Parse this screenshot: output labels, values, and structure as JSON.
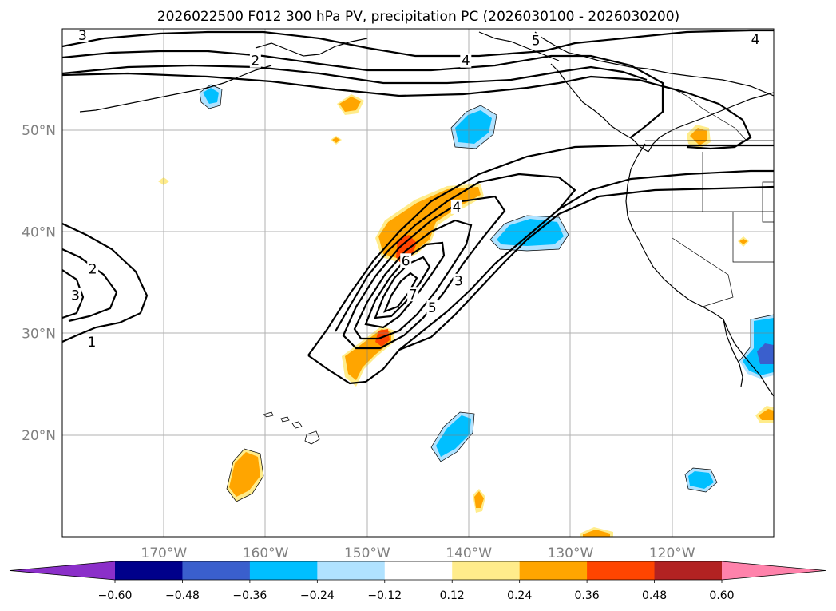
{
  "chart_data": {
    "type": "map",
    "title": "2026022500 F012 300 hPa PV, precipitation PC (2026030100 - 2026030200)",
    "lon_range": [
      -180,
      -110
    ],
    "lat_range": [
      10,
      60
    ],
    "lon_ticks": [
      {
        "lon": -170,
        "label": "170°W"
      },
      {
        "lon": -160,
        "label": "160°W"
      },
      {
        "lon": -150,
        "label": "150°W"
      },
      {
        "lon": -140,
        "label": "140°W"
      },
      {
        "lon": -130,
        "label": "130°W"
      },
      {
        "lon": -120,
        "label": "120°W"
      }
    ],
    "lat_ticks": [
      {
        "lat": 20,
        "label": "20°N"
      },
      {
        "lat": 30,
        "label": "30°N"
      },
      {
        "lat": 40,
        "label": "40°N"
      },
      {
        "lat": 50,
        "label": "50°N"
      }
    ],
    "colorbar": {
      "bounds": [
        -0.6,
        -0.48,
        -0.36,
        -0.24,
        -0.12,
        0.12,
        0.24,
        0.36,
        0.48,
        0.6
      ],
      "tick_labels": [
        "−0.60",
        "−0.48",
        "−0.36",
        "−0.24",
        "−0.12",
        "0.12",
        "0.24",
        "0.36",
        "0.48",
        "0.60"
      ],
      "colors": [
        "#8b2fc9",
        "#00008b",
        "#3a5fcd",
        "#00bfff",
        "#b0e2ff",
        "#ffffff",
        "#ffec8b",
        "#ffa500",
        "#ff4500",
        "#b22222",
        "#ff82ab"
      ],
      "extend": "both"
    },
    "pv_contour_labels": [
      {
        "text": "3",
        "lon": -178,
        "lat": 59.3
      },
      {
        "text": "2",
        "lon": -161,
        "lat": 56.8
      },
      {
        "text": "4",
        "lon": -140.3,
        "lat": 56.8
      },
      {
        "text": "5",
        "lon": -133.4,
        "lat": 58.8
      },
      {
        "text": "4",
        "lon": -111.8,
        "lat": 58.9
      },
      {
        "text": "4",
        "lon": -141.2,
        "lat": 42.4
      },
      {
        "text": "6",
        "lon": -146.2,
        "lat": 37.1
      },
      {
        "text": "7",
        "lon": -145.5,
        "lat": 33.8
      },
      {
        "text": "5",
        "lon": -143.6,
        "lat": 32.5
      },
      {
        "text": "3",
        "lon": -141,
        "lat": 35.1
      },
      {
        "text": "2",
        "lon": -177,
        "lat": 36.3
      },
      {
        "text": "3",
        "lon": -178.7,
        "lat": 33.7
      },
      {
        "text": "1",
        "lon": -177.1,
        "lat": 29.1
      }
    ]
  }
}
